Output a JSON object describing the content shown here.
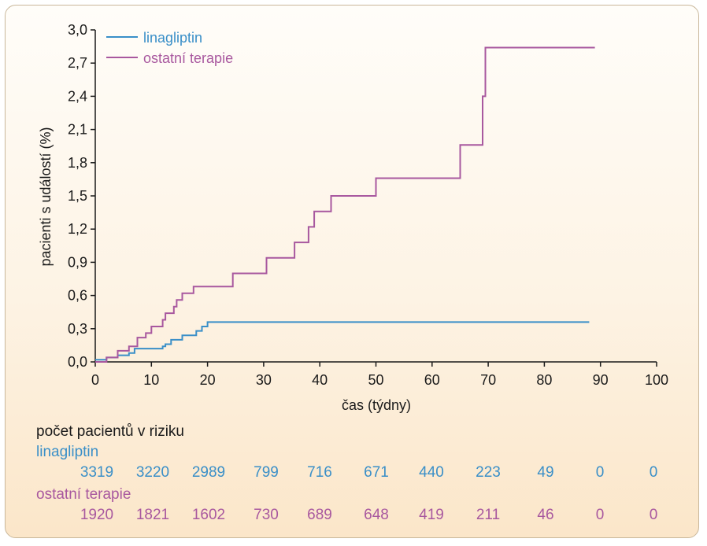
{
  "colors": {
    "linagliptin": "#3a8fc8",
    "ostatni": "#a8589f",
    "text": "#1a1a1a",
    "axis": "#1a1a1a"
  },
  "chart_data": {
    "type": "line",
    "step": true,
    "xlabel": "čas (týdny)",
    "ylabel": "pacienti s událostí (%)",
    "xlim": [
      0,
      100
    ],
    "ylim": [
      0,
      3.0
    ],
    "x_ticks": [
      0,
      10,
      20,
      30,
      40,
      50,
      60,
      70,
      80,
      90,
      100
    ],
    "y_ticks": [
      "0,0",
      "0,3",
      "0,6",
      "0,9",
      "1,2",
      "1,5",
      "1,8",
      "2,1",
      "2,4",
      "2,7",
      "3,0"
    ],
    "grid": false,
    "legend": "top-left",
    "series": [
      {
        "name": "linagliptin",
        "color": "#3a8fc8",
        "points": [
          [
            0,
            0.02
          ],
          [
            2,
            0.02
          ],
          [
            2,
            0.04
          ],
          [
            4,
            0.04
          ],
          [
            4,
            0.06
          ],
          [
            6,
            0.06
          ],
          [
            6,
            0.08
          ],
          [
            7,
            0.08
          ],
          [
            7,
            0.12
          ],
          [
            12,
            0.12
          ],
          [
            12,
            0.14
          ],
          [
            12.5,
            0.14
          ],
          [
            12.5,
            0.16
          ],
          [
            13.5,
            0.16
          ],
          [
            13.5,
            0.2
          ],
          [
            15.5,
            0.2
          ],
          [
            15.5,
            0.24
          ],
          [
            18,
            0.24
          ],
          [
            18,
            0.28
          ],
          [
            19,
            0.28
          ],
          [
            19,
            0.32
          ],
          [
            20,
            0.32
          ],
          [
            20,
            0.36
          ],
          [
            88,
            0.36
          ]
        ]
      },
      {
        "name": "ostatní terapie",
        "color": "#a8589f",
        "points": [
          [
            0,
            0
          ],
          [
            2,
            0
          ],
          [
            2,
            0.04
          ],
          [
            4,
            0.04
          ],
          [
            4,
            0.1
          ],
          [
            6,
            0.1
          ],
          [
            6,
            0.14
          ],
          [
            7.5,
            0.14
          ],
          [
            7.5,
            0.22
          ],
          [
            9,
            0.22
          ],
          [
            9,
            0.26
          ],
          [
            10,
            0.26
          ],
          [
            10,
            0.32
          ],
          [
            12,
            0.32
          ],
          [
            12,
            0.38
          ],
          [
            12.5,
            0.38
          ],
          [
            12.5,
            0.44
          ],
          [
            14,
            0.44
          ],
          [
            14,
            0.5
          ],
          [
            14.5,
            0.5
          ],
          [
            14.5,
            0.56
          ],
          [
            15.5,
            0.56
          ],
          [
            15.5,
            0.62
          ],
          [
            17.5,
            0.62
          ],
          [
            17.5,
            0.68
          ],
          [
            24.5,
            0.68
          ],
          [
            24.5,
            0.8
          ],
          [
            30.5,
            0.8
          ],
          [
            30.5,
            0.94
          ],
          [
            35.5,
            0.94
          ],
          [
            35.5,
            1.08
          ],
          [
            38,
            1.08
          ],
          [
            38,
            1.22
          ],
          [
            39,
            1.22
          ],
          [
            39,
            1.36
          ],
          [
            42,
            1.36
          ],
          [
            42,
            1.5
          ],
          [
            50,
            1.5
          ],
          [
            50,
            1.66
          ],
          [
            65,
            1.66
          ],
          [
            65,
            1.96
          ],
          [
            69,
            1.96
          ],
          [
            69,
            2.4
          ],
          [
            69.5,
            2.4
          ],
          [
            69.5,
            2.84
          ],
          [
            89,
            2.84
          ]
        ]
      }
    ]
  },
  "risk_table": {
    "title": "počet pacientů v riziku",
    "rows": [
      {
        "label": "linagliptin",
        "color": "#3a8fc8",
        "values": [
          "3319",
          "3220",
          "2989",
          "799",
          "716",
          "671",
          "440",
          "223",
          "49",
          "0",
          "0"
        ]
      },
      {
        "label": "ostatní terapie",
        "color": "#a8589f",
        "values": [
          "1920",
          "1821",
          "1602",
          "730",
          "689",
          "648",
          "419",
          "211",
          "46",
          "0",
          "0"
        ]
      }
    ]
  }
}
